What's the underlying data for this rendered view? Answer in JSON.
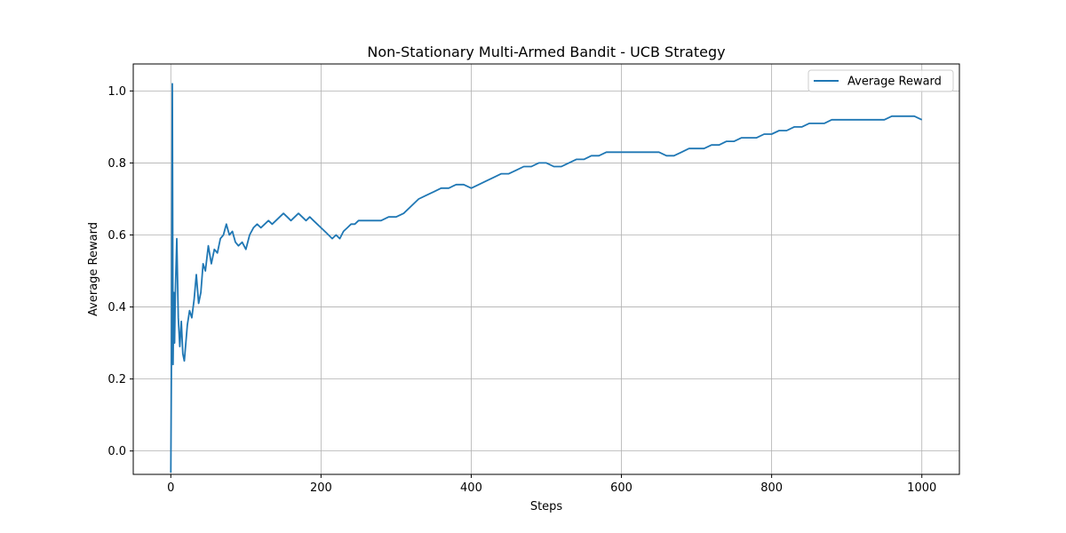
{
  "chart_data": {
    "type": "line",
    "title": "Non-Stationary Multi-Armed Bandit - UCB Strategy",
    "xlabel": "Steps",
    "ylabel": "Average Reward",
    "xlim": [
      -50,
      1050
    ],
    "ylim": [
      -0.065,
      1.075
    ],
    "xticks": [
      0,
      200,
      400,
      600,
      800,
      1000
    ],
    "yticks": [
      0.0,
      0.2,
      0.4,
      0.6,
      0.8,
      1.0
    ],
    "xtick_labels": [
      "0",
      "200",
      "400",
      "600",
      "800",
      "1000"
    ],
    "ytick_labels": [
      "0.0",
      "0.2",
      "0.4",
      "0.6",
      "0.8",
      "1.0"
    ],
    "grid": true,
    "legend_position": "top-right",
    "series": [
      {
        "name": "Average Reward",
        "color": "#1f77b4",
        "x": [
          0,
          1,
          2,
          3,
          4,
          5,
          6,
          8,
          10,
          12,
          14,
          16,
          18,
          20,
          22,
          25,
          28,
          31,
          34,
          37,
          40,
          43,
          46,
          50,
          54,
          58,
          62,
          66,
          70,
          74,
          78,
          82,
          86,
          90,
          95,
          100,
          105,
          110,
          115,
          120,
          125,
          130,
          135,
          140,
          145,
          150,
          155,
          160,
          165,
          170,
          175,
          180,
          185,
          190,
          195,
          200,
          205,
          210,
          215,
          220,
          225,
          230,
          235,
          240,
          245,
          250,
          260,
          270,
          280,
          290,
          300,
          310,
          320,
          330,
          340,
          350,
          360,
          370,
          380,
          390,
          400,
          410,
          420,
          430,
          440,
          450,
          460,
          470,
          480,
          490,
          500,
          510,
          520,
          530,
          540,
          550,
          560,
          570,
          580,
          590,
          600,
          610,
          620,
          630,
          640,
          650,
          660,
          670,
          680,
          690,
          700,
          710,
          720,
          730,
          740,
          750,
          760,
          770,
          780,
          790,
          800,
          810,
          820,
          830,
          840,
          850,
          860,
          870,
          880,
          890,
          900,
          910,
          920,
          930,
          940,
          950,
          960,
          970,
          980,
          990,
          1000
        ],
        "y": [
          -0.06,
          0.3,
          1.02,
          0.24,
          0.44,
          0.3,
          0.43,
          0.59,
          0.37,
          0.29,
          0.36,
          0.27,
          0.25,
          0.3,
          0.35,
          0.39,
          0.37,
          0.42,
          0.49,
          0.41,
          0.44,
          0.52,
          0.5,
          0.57,
          0.52,
          0.56,
          0.55,
          0.59,
          0.6,
          0.63,
          0.6,
          0.61,
          0.58,
          0.57,
          0.58,
          0.56,
          0.6,
          0.62,
          0.63,
          0.62,
          0.63,
          0.64,
          0.63,
          0.64,
          0.65,
          0.66,
          0.65,
          0.64,
          0.65,
          0.66,
          0.65,
          0.64,
          0.65,
          0.64,
          0.63,
          0.62,
          0.61,
          0.6,
          0.59,
          0.6,
          0.59,
          0.61,
          0.62,
          0.63,
          0.63,
          0.64,
          0.64,
          0.64,
          0.64,
          0.65,
          0.65,
          0.66,
          0.68,
          0.7,
          0.71,
          0.72,
          0.73,
          0.73,
          0.74,
          0.74,
          0.73,
          0.74,
          0.75,
          0.76,
          0.77,
          0.77,
          0.78,
          0.79,
          0.79,
          0.8,
          0.8,
          0.79,
          0.79,
          0.8,
          0.81,
          0.81,
          0.82,
          0.82,
          0.83,
          0.83,
          0.83,
          0.83,
          0.83,
          0.83,
          0.83,
          0.83,
          0.82,
          0.82,
          0.83,
          0.84,
          0.84,
          0.84,
          0.85,
          0.85,
          0.86,
          0.86,
          0.87,
          0.87,
          0.87,
          0.88,
          0.88,
          0.89,
          0.89,
          0.9,
          0.9,
          0.91,
          0.91,
          0.91,
          0.92,
          0.92,
          0.92,
          0.92,
          0.92,
          0.92,
          0.92,
          0.92,
          0.93,
          0.93,
          0.93,
          0.93,
          0.92
        ]
      }
    ]
  }
}
